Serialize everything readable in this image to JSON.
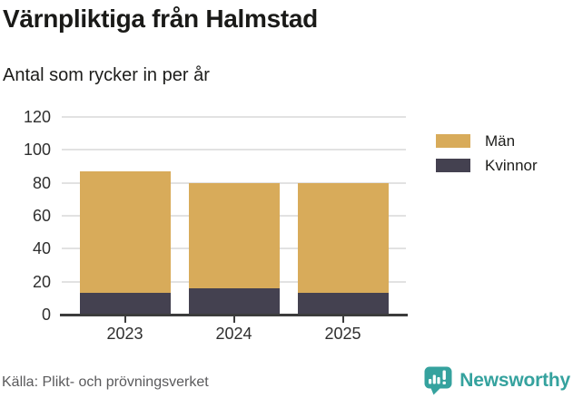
{
  "title": "Värnpliktiga från Halmstad",
  "subtitle": "Antal som rycker in per år",
  "source": "Källa: Plikt- och prövningsverket",
  "logo": {
    "text": "Newsworthy",
    "color": "#35a29e",
    "icon": "newsworthy-speech-bubble-bar-chart-icon"
  },
  "colors": {
    "men": "#d8ab5a",
    "women": "#444150",
    "gridline": "#e2e2e2",
    "axis": "#3c3c3c",
    "text": "#1d1d1b",
    "muted_text": "#5a5a5c",
    "brand_teal": "#35a29e"
  },
  "chart_data": {
    "type": "bar",
    "stacked": true,
    "categories": [
      "2023",
      "2024",
      "2025"
    ],
    "series": [
      {
        "name": "Män",
        "color": "#d8ab5a",
        "values": [
          74,
          64,
          67
        ]
      },
      {
        "name": "Kvinnor",
        "color": "#444150",
        "values": [
          13,
          16,
          13
        ]
      }
    ],
    "stack_totals": [
      87,
      80,
      80
    ],
    "title": "Värnpliktiga från Halmstad",
    "subtitle": "Antal som rycker in per år",
    "xlabel": "",
    "ylabel": "",
    "ylim": [
      0,
      120
    ],
    "yticks": [
      0,
      20,
      40,
      60,
      80,
      100,
      120
    ],
    "grid": true,
    "legend_position": "right",
    "stack_order_bottom_to_top": [
      "Kvinnor",
      "Män"
    ]
  }
}
